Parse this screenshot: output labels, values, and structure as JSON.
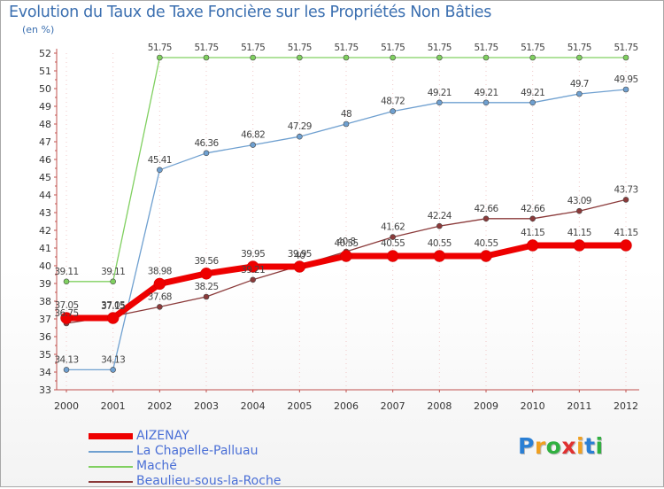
{
  "header": {
    "title": "Evolution du Taux de Taxe Foncière sur les Propriétés Non Bâties",
    "unit": "(en %)"
  },
  "chart_data": {
    "type": "line",
    "title": "Evolution du Taux de Taxe Foncière sur les Propriétés Non Bâties",
    "ylabel": "(en %)",
    "xlabel": "",
    "ylim": [
      33,
      52
    ],
    "grid": false,
    "legend_position": "bottom-left",
    "x": [
      "2000",
      "2001",
      "2002",
      "2003",
      "2004",
      "2005",
      "2006",
      "2007",
      "2008",
      "2009",
      "2010",
      "2011",
      "2012"
    ],
    "y_ticks": [
      "33",
      "34",
      "35",
      "36",
      "37",
      "38",
      "39",
      "40",
      "41",
      "42",
      "43",
      "44",
      "45",
      "46",
      "47",
      "48",
      "49",
      "50",
      "51",
      "52"
    ],
    "series": [
      {
        "name": "AIZENAY",
        "color": "#ee0000",
        "values": [
          37.05,
          37.05,
          38.98,
          39.56,
          39.95,
          39.95,
          40.55,
          40.55,
          40.55,
          40.55,
          41.15,
          41.15,
          41.15
        ],
        "labels": [
          "37.05",
          "37.05",
          "38.98",
          "39.56",
          "39.95",
          "39.95",
          "40.55",
          "40.55",
          "40.55",
          "40.55",
          "41.15",
          "41.15",
          "41.15"
        ]
      },
      {
        "name": "La Chapelle-Palluau",
        "color": "#6fa0d0",
        "values": [
          34.13,
          34.13,
          45.41,
          46.36,
          46.82,
          47.29,
          48,
          48.72,
          49.21,
          49.21,
          49.21,
          49.7,
          49.95
        ],
        "labels": [
          "34.13",
          "34.13",
          "45.41",
          "46.36",
          "46.82",
          "47.29",
          "48",
          "48.72",
          "49.21",
          "49.21",
          "49.21",
          "49.7",
          "49.95"
        ]
      },
      {
        "name": "Maché",
        "color": "#80d060",
        "values": [
          39.11,
          39.11,
          51.75,
          51.75,
          51.75,
          51.75,
          51.75,
          51.75,
          51.75,
          51.75,
          51.75,
          51.75,
          51.75
        ],
        "labels": [
          "39.11",
          "39.11",
          "51.75",
          "51.75",
          "51.75",
          "51.75",
          "51.75",
          "51.75",
          "51.75",
          "51.75",
          "51.75",
          "51.75",
          "51.75"
        ]
      },
      {
        "name": "Beaulieu-sous-la-Roche",
        "color": "#8b3a3a",
        "values": [
          36.75,
          37.15,
          37.68,
          38.25,
          39.21,
          40,
          40.8,
          41.62,
          42.24,
          42.66,
          42.66,
          43.09,
          43.73
        ],
        "labels": [
          "36.75",
          "37.15",
          "37.68",
          "38.25",
          "39.21",
          "40",
          "40.8",
          "41.62",
          "42.24",
          "42.66",
          "42.66",
          "43.09",
          "43.73"
        ]
      }
    ]
  },
  "logo": {
    "letters": [
      "P",
      "r",
      "o",
      "x",
      "i",
      "t",
      "i"
    ],
    "colors": [
      "#2a7fd4",
      "#f0a020",
      "#30b040",
      "#e03030",
      "#f0a020",
      "#2a7fd4",
      "#30b040"
    ]
  }
}
